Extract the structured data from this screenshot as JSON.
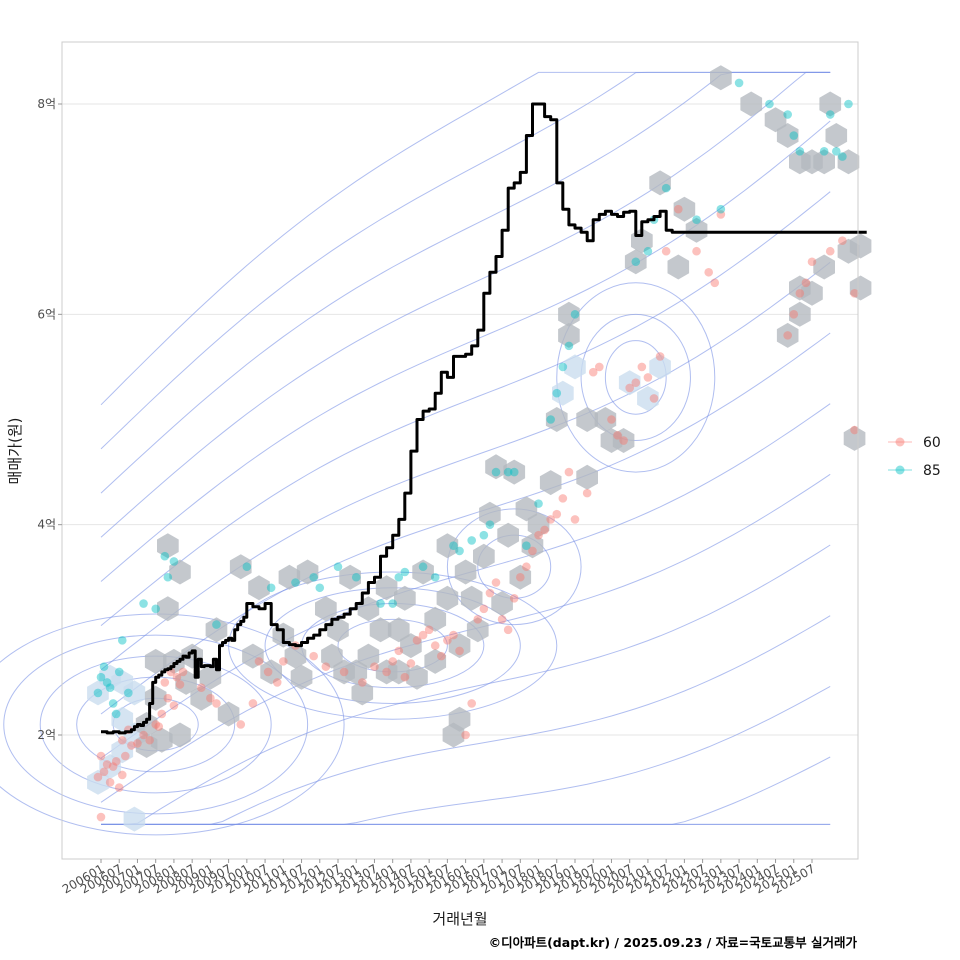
{
  "chart_data": {
    "type": "line",
    "title": "",
    "xlabel": "거래년월",
    "ylabel": "매매가(원)",
    "caption": "©디아파트(dapt.kr) / 2025.09.23 / 자료=국토교통부 실거래가",
    "x_ticks": [
      "200601",
      "200607",
      "200701",
      "200707",
      "200801",
      "200807",
      "200901",
      "200907",
      "201001",
      "201007",
      "201101",
      "201107",
      "201201",
      "201207",
      "201301",
      "201307",
      "201401",
      "201407",
      "201501",
      "201507",
      "201601",
      "201607",
      "201701",
      "201707",
      "201801",
      "201807",
      "201901",
      "201907",
      "202001",
      "202007",
      "202101",
      "202107",
      "202201",
      "202207",
      "202301",
      "202307",
      "202401",
      "202407",
      "202501",
      "202507"
    ],
    "y_ticks": [
      {
        "value": 2,
        "label": "2억"
      },
      {
        "value": 4,
        "label": "4억"
      },
      {
        "value": 6,
        "label": "6억"
      },
      {
        "value": 8,
        "label": "8억"
      }
    ],
    "ylim": [
      0.95,
      8.7
    ],
    "xlim_months": [
      -4,
      258
    ],
    "grid": true,
    "legend": {
      "position": "right",
      "entries": [
        {
          "label": "60",
          "color": "#f8766d"
        },
        {
          "label": "85",
          "color": "#00bfc4"
        }
      ]
    },
    "colors": {
      "line": "#000000",
      "hexbin": "#b4b8bf",
      "hexbin_light": "#c9dcee",
      "contour": "#7b93e6",
      "grid": "#e6e6e6",
      "panel_border": "#cccccc"
    },
    "median_line": {
      "name": "median price",
      "x_month_index": [
        0,
        2,
        4,
        6,
        8,
        10,
        11,
        12,
        13,
        14,
        15,
        16,
        17,
        18,
        19,
        20,
        21,
        22,
        23,
        24,
        25,
        26,
        27,
        28,
        29,
        30,
        31,
        32,
        33,
        34,
        35,
        36,
        37,
        38,
        39,
        40,
        41,
        42,
        43,
        44,
        45,
        46,
        47,
        48,
        50,
        52,
        54,
        56,
        58,
        60,
        62,
        64,
        66,
        68,
        70,
        72,
        74,
        76,
        78,
        80,
        82,
        84,
        86,
        88,
        90,
        92,
        94,
        96,
        98,
        100,
        102,
        104,
        106,
        108,
        110,
        112,
        114,
        116,
        118,
        120,
        122,
        124,
        126,
        128,
        130,
        132,
        134,
        136,
        138,
        140,
        142,
        144,
        146,
        148,
        150,
        152,
        154,
        156,
        158,
        160,
        162,
        164,
        166,
        168,
        170,
        172,
        174,
        176,
        178,
        180,
        182,
        184,
        186,
        188,
        190,
        192,
        194,
        196,
        198,
        200,
        202,
        204,
        206,
        208,
        210,
        212,
        214,
        216,
        218,
        220,
        222,
        224,
        226,
        228,
        230,
        232,
        234,
        236,
        238,
        240,
        242,
        244,
        246,
        248,
        250,
        252,
        254
      ],
      "values": [
        2.03,
        2.02,
        2.03,
        2.02,
        2.03,
        2.05,
        2.08,
        2.1,
        2.09,
        2.12,
        2.15,
        2.3,
        2.5,
        2.55,
        2.57,
        2.6,
        2.62,
        2.63,
        2.65,
        2.68,
        2.7,
        2.72,
        2.75,
        2.74,
        2.78,
        2.8,
        2.55,
        2.72,
        2.65,
        2.66,
        2.66,
        2.65,
        2.72,
        2.62,
        2.85,
        2.88,
        2.9,
        2.92,
        2.9,
        3.0,
        3.05,
        3.08,
        3.12,
        3.25,
        3.22,
        3.2,
        3.25,
        3.05,
        3.0,
        2.88,
        2.86,
        2.85,
        2.88,
        2.92,
        2.95,
        3.0,
        3.05,
        3.1,
        3.12,
        3.15,
        3.2,
        3.25,
        3.35,
        3.45,
        3.5,
        3.7,
        3.78,
        3.9,
        4.05,
        4.3,
        4.7,
        5.0,
        5.08,
        5.1,
        5.25,
        5.45,
        5.4,
        5.6,
        5.6,
        5.62,
        5.7,
        5.85,
        6.2,
        6.4,
        6.55,
        6.8,
        7.2,
        7.25,
        7.35,
        7.7,
        8.0,
        8.0,
        7.88,
        7.85,
        7.25,
        7.0,
        6.85,
        6.82,
        6.78,
        6.7,
        6.9,
        6.95,
        6.98,
        6.95,
        6.93,
        6.97,
        6.98,
        6.75,
        6.88,
        6.9,
        6.93,
        6.98,
        6.8,
        6.78,
        6.78,
        6.78,
        6.78,
        6.78,
        6.78,
        6.78,
        6.78,
        6.78,
        6.78,
        6.78,
        6.78,
        6.78,
        6.78,
        6.78,
        6.78,
        6.78,
        6.78,
        6.78,
        6.78,
        6.78,
        6.78,
        6.78,
        6.78,
        6.78,
        6.78,
        6.78,
        6.78,
        6.78,
        6.78,
        6.78,
        6.78,
        6.78,
        6.78,
        6.78,
        6.78
      ]
    },
    "series": [
      {
        "name": "60",
        "color": "#f8766d",
        "points_month_value": [
          [
            0,
            1.22
          ],
          [
            -1,
            1.6
          ],
          [
            0,
            1.8
          ],
          [
            1,
            1.65
          ],
          [
            3,
            1.55
          ],
          [
            5,
            1.75
          ],
          [
            6,
            1.5
          ],
          [
            7,
            1.62
          ],
          [
            8,
            1.8
          ],
          [
            4,
            1.7
          ],
          [
            2,
            1.72
          ],
          [
            7,
            1.95
          ],
          [
            9,
            2.05
          ],
          [
            10,
            1.9
          ],
          [
            12,
            1.92
          ],
          [
            14,
            2.0
          ],
          [
            16,
            1.95
          ],
          [
            18,
            2.1
          ],
          [
            20,
            2.2
          ],
          [
            22,
            2.35
          ],
          [
            24,
            2.28
          ],
          [
            21,
            2.5
          ],
          [
            23,
            2.6
          ],
          [
            25,
            2.55
          ],
          [
            26,
            2.48
          ],
          [
            19,
            2.08
          ],
          [
            27,
            2.6
          ],
          [
            33,
            2.45
          ],
          [
            36,
            2.35
          ],
          [
            38,
            2.3
          ],
          [
            46,
            2.1
          ],
          [
            50,
            2.3
          ],
          [
            52,
            2.7
          ],
          [
            55,
            2.6
          ],
          [
            58,
            2.5
          ],
          [
            60,
            2.7
          ],
          [
            64,
            2.85
          ],
          [
            70,
            2.75
          ],
          [
            74,
            2.65
          ],
          [
            80,
            2.6
          ],
          [
            86,
            2.5
          ],
          [
            90,
            2.65
          ],
          [
            94,
            2.6
          ],
          [
            96,
            2.7
          ],
          [
            98,
            2.8
          ],
          [
            100,
            2.55
          ],
          [
            102,
            2.68
          ],
          [
            104,
            2.9
          ],
          [
            106,
            2.95
          ],
          [
            108,
            3.0
          ],
          [
            110,
            2.85
          ],
          [
            112,
            2.75
          ],
          [
            114,
            2.9
          ],
          [
            116,
            2.95
          ],
          [
            118,
            2.8
          ],
          [
            120,
            2.0
          ],
          [
            122,
            2.3
          ],
          [
            124,
            3.1
          ],
          [
            126,
            3.2
          ],
          [
            128,
            3.35
          ],
          [
            130,
            3.45
          ],
          [
            132,
            3.1
          ],
          [
            134,
            3.0
          ],
          [
            136,
            3.3
          ],
          [
            138,
            3.5
          ],
          [
            140,
            3.6
          ],
          [
            142,
            3.75
          ],
          [
            144,
            3.9
          ],
          [
            146,
            3.95
          ],
          [
            148,
            4.05
          ],
          [
            150,
            4.1
          ],
          [
            152,
            4.25
          ],
          [
            154,
            4.5
          ],
          [
            156,
            4.05
          ],
          [
            160,
            4.3
          ],
          [
            162,
            5.45
          ],
          [
            164,
            5.5
          ],
          [
            168,
            5.0
          ],
          [
            170,
            4.85
          ],
          [
            172,
            4.8
          ],
          [
            174,
            5.3
          ],
          [
            176,
            5.35
          ],
          [
            178,
            5.5
          ],
          [
            180,
            5.4
          ],
          [
            182,
            5.2
          ],
          [
            184,
            5.6
          ],
          [
            186,
            6.6
          ],
          [
            190,
            7.0
          ],
          [
            196,
            6.6
          ],
          [
            200,
            6.4
          ],
          [
            202,
            6.3
          ],
          [
            204,
            6.95
          ],
          [
            226,
            5.8
          ],
          [
            228,
            6.0
          ],
          [
            230,
            6.2
          ],
          [
            232,
            6.3
          ],
          [
            234,
            6.5
          ],
          [
            240,
            6.6
          ],
          [
            244,
            6.7
          ],
          [
            248,
            6.2
          ],
          [
            248,
            4.9
          ]
        ]
      },
      {
        "name": "85",
        "color": "#00bfc4",
        "points_month_value": [
          [
            -1,
            2.4
          ],
          [
            0,
            2.55
          ],
          [
            1,
            2.65
          ],
          [
            2,
            2.5
          ],
          [
            3,
            2.45
          ],
          [
            4,
            2.3
          ],
          [
            5,
            2.2
          ],
          [
            6,
            2.6
          ],
          [
            7,
            2.9
          ],
          [
            9,
            2.4
          ],
          [
            14,
            3.25
          ],
          [
            18,
            3.2
          ],
          [
            21,
            3.7
          ],
          [
            22,
            3.5
          ],
          [
            24,
            3.65
          ],
          [
            38,
            3.05
          ],
          [
            48,
            3.6
          ],
          [
            56,
            3.4
          ],
          [
            64,
            3.45
          ],
          [
            70,
            3.5
          ],
          [
            72,
            3.4
          ],
          [
            78,
            3.6
          ],
          [
            84,
            3.5
          ],
          [
            92,
            3.25
          ],
          [
            96,
            3.25
          ],
          [
            98,
            3.5
          ],
          [
            100,
            3.55
          ],
          [
            106,
            3.6
          ],
          [
            110,
            3.5
          ],
          [
            116,
            3.8
          ],
          [
            118,
            3.75
          ],
          [
            122,
            3.85
          ],
          [
            126,
            3.9
          ],
          [
            128,
            4.0
          ],
          [
            130,
            4.5
          ],
          [
            134,
            4.5
          ],
          [
            136,
            4.5
          ],
          [
            140,
            3.8
          ],
          [
            144,
            4.2
          ],
          [
            148,
            5.0
          ],
          [
            150,
            5.25
          ],
          [
            152,
            5.5
          ],
          [
            154,
            5.7
          ],
          [
            156,
            6.0
          ],
          [
            176,
            6.5
          ],
          [
            180,
            6.6
          ],
          [
            182,
            6.9
          ],
          [
            186,
            7.2
          ],
          [
            196,
            6.9
          ],
          [
            204,
            7.0
          ],
          [
            210,
            8.2
          ],
          [
            220,
            8.0
          ],
          [
            226,
            7.9
          ],
          [
            228,
            7.7
          ],
          [
            230,
            7.55
          ],
          [
            238,
            7.55
          ],
          [
            240,
            7.9
          ],
          [
            242,
            7.55
          ],
          [
            244,
            7.5
          ],
          [
            246,
            8.0
          ]
        ]
      }
    ],
    "hexbins_month_value": [
      [
        -1,
        2.4
      ],
      [
        -1,
        1.55
      ],
      [
        3,
        2.55
      ],
      [
        3,
        1.7
      ],
      [
        7,
        2.15
      ],
      [
        7,
        1.85
      ],
      [
        7,
        2.5
      ],
      [
        11,
        2.4
      ],
      [
        11,
        2.0
      ],
      [
        11,
        1.2
      ],
      [
        15,
        2.1
      ],
      [
        15,
        1.9
      ],
      [
        18,
        2.35
      ],
      [
        18,
        2.7
      ],
      [
        20,
        1.95
      ],
      [
        22,
        3.8
      ],
      [
        22,
        3.2
      ],
      [
        24,
        2.7
      ],
      [
        26,
        3.55
      ],
      [
        26,
        2.0
      ],
      [
        28,
        2.5
      ],
      [
        30,
        2.75
      ],
      [
        33,
        2.35
      ],
      [
        36,
        2.55
      ],
      [
        38,
        3.0
      ],
      [
        42,
        2.2
      ],
      [
        46,
        3.6
      ],
      [
        50,
        2.75
      ],
      [
        52,
        3.4
      ],
      [
        56,
        2.6
      ],
      [
        60,
        2.95
      ],
      [
        62,
        3.5
      ],
      [
        64,
        2.75
      ],
      [
        66,
        2.55
      ],
      [
        68,
        3.55
      ],
      [
        74,
        3.2
      ],
      [
        76,
        2.75
      ],
      [
        78,
        3.0
      ],
      [
        80,
        2.6
      ],
      [
        82,
        3.5
      ],
      [
        84,
        2.6
      ],
      [
        86,
        2.4
      ],
      [
        88,
        3.2
      ],
      [
        88,
        2.75
      ],
      [
        92,
        3.0
      ],
      [
        94,
        3.4
      ],
      [
        94,
        2.6
      ],
      [
        98,
        3.0
      ],
      [
        98,
        2.6
      ],
      [
        100,
        3.3
      ],
      [
        102,
        2.85
      ],
      [
        104,
        2.55
      ],
      [
        106,
        3.55
      ],
      [
        110,
        3.1
      ],
      [
        110,
        2.7
      ],
      [
        114,
        3.8
      ],
      [
        114,
        3.3
      ],
      [
        116,
        2.0
      ],
      [
        118,
        2.15
      ],
      [
        118,
        2.85
      ],
      [
        120,
        3.55
      ],
      [
        122,
        3.3
      ],
      [
        124,
        3.0
      ],
      [
        126,
        3.7
      ],
      [
        128,
        4.1
      ],
      [
        130,
        4.55
      ],
      [
        132,
        3.25
      ],
      [
        134,
        3.9
      ],
      [
        136,
        4.5
      ],
      [
        138,
        3.5
      ],
      [
        140,
        4.15
      ],
      [
        142,
        3.8
      ],
      [
        144,
        4.0
      ],
      [
        148,
        4.4
      ],
      [
        150,
        5.0
      ],
      [
        152,
        5.25
      ],
      [
        154,
        6.0
      ],
      [
        154,
        5.8
      ],
      [
        156,
        5.5
      ],
      [
        160,
        4.45
      ],
      [
        160,
        5.0
      ],
      [
        166,
        5.0
      ],
      [
        168,
        4.8
      ],
      [
        172,
        4.8
      ],
      [
        174,
        5.35
      ],
      [
        176,
        6.5
      ],
      [
        178,
        6.7
      ],
      [
        180,
        5.2
      ],
      [
        184,
        5.5
      ],
      [
        184,
        7.25
      ],
      [
        190,
        6.45
      ],
      [
        192,
        7.0
      ],
      [
        196,
        6.8
      ],
      [
        204,
        8.25
      ],
      [
        214,
        8.0
      ],
      [
        222,
        7.85
      ],
      [
        226,
        7.7
      ],
      [
        230,
        7.45
      ],
      [
        234,
        7.45
      ],
      [
        238,
        7.45
      ],
      [
        240,
        8.0
      ],
      [
        242,
        7.7
      ],
      [
        246,
        7.45
      ],
      [
        226,
        5.8
      ],
      [
        230,
        6.0
      ],
      [
        230,
        6.25
      ],
      [
        234,
        6.2
      ],
      [
        238,
        6.45
      ],
      [
        246,
        6.6
      ],
      [
        250,
        6.65
      ],
      [
        250,
        6.25
      ],
      [
        248,
        4.82
      ]
    ],
    "contour_levels": 16
  }
}
